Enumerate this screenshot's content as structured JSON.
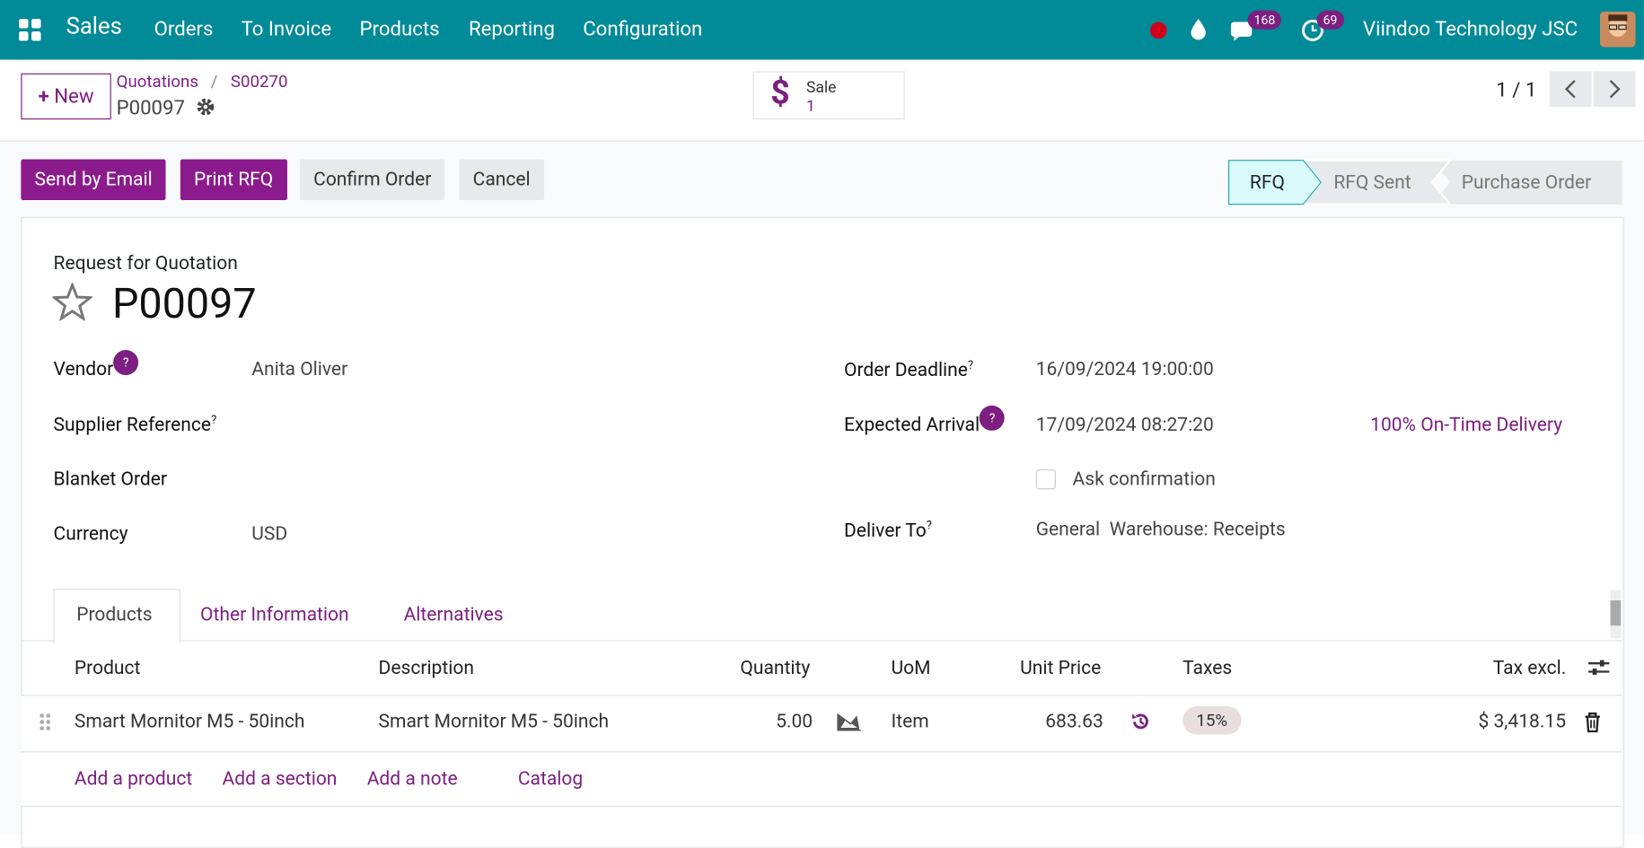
{
  "navbar": {
    "app": "Sales",
    "menu": [
      "Orders",
      "To Invoice",
      "Products",
      "Reporting",
      "Configuration"
    ],
    "messages_badge": "168",
    "activities_badge": "69",
    "company": "Viindoo Technology JSC"
  },
  "control_panel": {
    "new_button": "New",
    "breadcrumb": [
      "Quotations",
      "S00270"
    ],
    "current": "P00097",
    "smart_button": {
      "label": "Sale",
      "count": "1"
    },
    "pager": "1 / 1"
  },
  "actions": [
    "Send by Email",
    "Print RFQ",
    "Confirm Order",
    "Cancel"
  ],
  "statusbar": [
    "RFQ",
    "RFQ Sent",
    "Purchase Order"
  ],
  "form": {
    "subtitle": "Request for Quotation",
    "name": "P00097",
    "left_fields": [
      {
        "label": "Vendor",
        "help": "?",
        "value": "Anita Oliver"
      },
      {
        "label": "Supplier Reference",
        "help": "?"
      },
      {
        "label": "Blanket Order"
      },
      {
        "label": "Currency",
        "value": "USD"
      }
    ],
    "right_fields": [
      {
        "label": "Order Deadline",
        "help": "?",
        "value": "16/09/2024 19:00:00"
      },
      {
        "label": "Expected Arrival",
        "help": "?",
        "value": "17/09/2024 08:27:20",
        "extra": "100% On-Time Delivery"
      },
      {
        "checkbox": "Ask confirmation"
      },
      {
        "label": "Deliver To",
        "help": "?",
        "value": "General  Warehouse: Receipts"
      }
    ]
  },
  "tabs": [
    "Products",
    "Other Information",
    "Alternatives"
  ],
  "table": {
    "headers": [
      "Product",
      "Description",
      "Quantity",
      "UoM",
      "Unit Price",
      "Taxes",
      "Tax excl."
    ],
    "rows": [
      [
        "Smart Mornitor M5 - 50inch",
        "Smart Mornitor M5 - 50inch",
        "5.00",
        "Item",
        "683.63",
        "15%",
        "$ 3,418.15"
      ]
    ],
    "add_links": [
      "Add a product",
      "Add a section",
      "Add a note",
      "Catalog"
    ]
  }
}
